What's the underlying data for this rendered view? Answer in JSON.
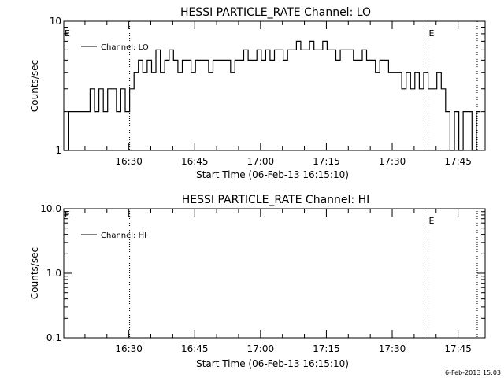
{
  "footer": {
    "timestamp": "6-Feb-2013 15:03"
  },
  "chart_data": [
    {
      "type": "line",
      "title": "HESSI PARTICLE_RATE Channel: LO",
      "xlabel": "Start Time (06-Feb-13 16:15:10)",
      "ylabel": "Counts/sec",
      "x_unit": "minutes since 16:15:10",
      "xlim": [
        0,
        96
      ],
      "ylim": [
        1,
        10
      ],
      "y_scale": "log",
      "x_ticks": [
        {
          "label": "16:30",
          "value": 14.83
        },
        {
          "label": "16:45",
          "value": 29.83
        },
        {
          "label": "17:00",
          "value": 44.83
        },
        {
          "label": "17:15",
          "value": 59.83
        },
        {
          "label": "17:30",
          "value": 74.83
        },
        {
          "label": "17:45",
          "value": 89.83
        }
      ],
      "y_ticks": [
        {
          "label": "10",
          "value": 10
        },
        {
          "label": "1",
          "value": 1
        }
      ],
      "event_markers": [
        {
          "x": 15.0,
          "label": ""
        },
        {
          "x": 83.0,
          "label": "E"
        },
        {
          "x": 94.2,
          "label": ""
        }
      ],
      "corner_label": "E",
      "legend": {
        "entries": [
          "Channel: LO"
        ],
        "placement": "top-left"
      },
      "series": [
        {
          "name": "Channel: LO",
          "x": [
            0,
            1,
            2,
            3,
            4,
            5,
            6,
            7,
            8,
            9,
            10,
            11,
            12,
            13,
            14,
            15,
            16,
            17,
            18,
            19,
            20,
            21,
            22,
            23,
            24,
            25,
            26,
            27,
            28,
            29,
            30,
            31,
            32,
            33,
            34,
            35,
            36,
            37,
            38,
            39,
            40,
            41,
            42,
            43,
            44,
            45,
            46,
            47,
            48,
            49,
            50,
            51,
            52,
            53,
            54,
            55,
            56,
            57,
            58,
            59,
            60,
            61,
            62,
            63,
            64,
            65,
            66,
            67,
            68,
            69,
            70,
            71,
            72,
            73,
            74,
            75,
            76,
            77,
            78,
            79,
            80,
            81,
            82,
            83,
            84,
            85,
            86,
            87,
            88,
            89,
            90,
            91,
            92,
            93,
            94
          ],
          "values": [
            1,
            2,
            2,
            2,
            2,
            2,
            3,
            2,
            3,
            2,
            3,
            3,
            2,
            3,
            2,
            3,
            4,
            5,
            4,
            5,
            4,
            6,
            4,
            5,
            6,
            5,
            4,
            5,
            5,
            4,
            5,
            5,
            5,
            4,
            5,
            5,
            5,
            5,
            4,
            5,
            5,
            6,
            5,
            5,
            6,
            5,
            6,
            5,
            6,
            6,
            5,
            6,
            6,
            7,
            6,
            6,
            7,
            6,
            6,
            7,
            6,
            6,
            5,
            6,
            6,
            6,
            5,
            5,
            6,
            5,
            5,
            4,
            5,
            5,
            4,
            4,
            4,
            3,
            4,
            3,
            4,
            3,
            4,
            3,
            3,
            4,
            3,
            2,
            1,
            2,
            1,
            2,
            2,
            1,
            2
          ]
        }
      ]
    },
    {
      "type": "line",
      "title": "HESSI PARTICLE_RATE Channel: HI",
      "xlabel": "Start Time (06-Feb-13 16:15:10)",
      "ylabel": "Counts/sec",
      "x_unit": "minutes since 16:15:10",
      "xlim": [
        0,
        96
      ],
      "ylim": [
        0.1,
        10
      ],
      "y_scale": "log",
      "x_ticks": [
        {
          "label": "16:30",
          "value": 14.83
        },
        {
          "label": "16:45",
          "value": 29.83
        },
        {
          "label": "17:00",
          "value": 44.83
        },
        {
          "label": "17:15",
          "value": 59.83
        },
        {
          "label": "17:30",
          "value": 74.83
        },
        {
          "label": "17:45",
          "value": 89.83
        }
      ],
      "y_ticks": [
        {
          "label": "10.0",
          "value": 10
        },
        {
          "label": "1.0",
          "value": 1
        },
        {
          "label": "0.1",
          "value": 0.1
        }
      ],
      "event_markers": [
        {
          "x": 15.0,
          "label": ""
        },
        {
          "x": 83.0,
          "label": "E"
        },
        {
          "x": 94.2,
          "label": ""
        }
      ],
      "corner_label": "E",
      "legend": {
        "entries": [
          "Channel: HI"
        ],
        "placement": "top-left"
      },
      "series": [
        {
          "name": "Channel: HI",
          "x": [],
          "values": []
        }
      ]
    }
  ]
}
